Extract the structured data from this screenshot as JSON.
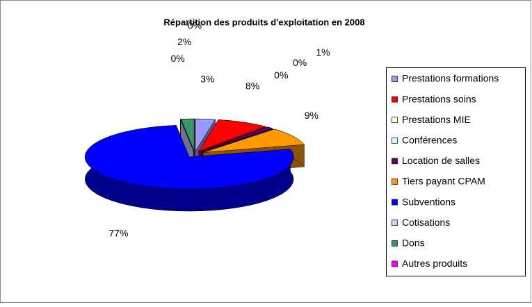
{
  "chart_data": {
    "type": "pie",
    "title": "Répartition des produits d'exploitation en 2008",
    "categories": [
      "Prestations formations",
      "Prestations soins",
      "Prestations MIE",
      "Conférences",
      "Location de salles",
      "Tiers payant CPAM",
      "Subventions",
      "Cotisations",
      "Dons",
      "Autres produits"
    ],
    "values": [
      3,
      8,
      0,
      0,
      1,
      9,
      77,
      0,
      2,
      0
    ],
    "value_labels": [
      "3%",
      "8%",
      "0%",
      "0%",
      "1%",
      "9%",
      "77%",
      "0%",
      "2%",
      "0%"
    ],
    "colors": [
      "#9999ff",
      "#ff0000",
      "#ffffcc",
      "#ccffff",
      "#660066",
      "#ff9900",
      "#0000ff",
      "#ccccff",
      "#339966",
      "#ff00ff"
    ],
    "legend": "right"
  }
}
